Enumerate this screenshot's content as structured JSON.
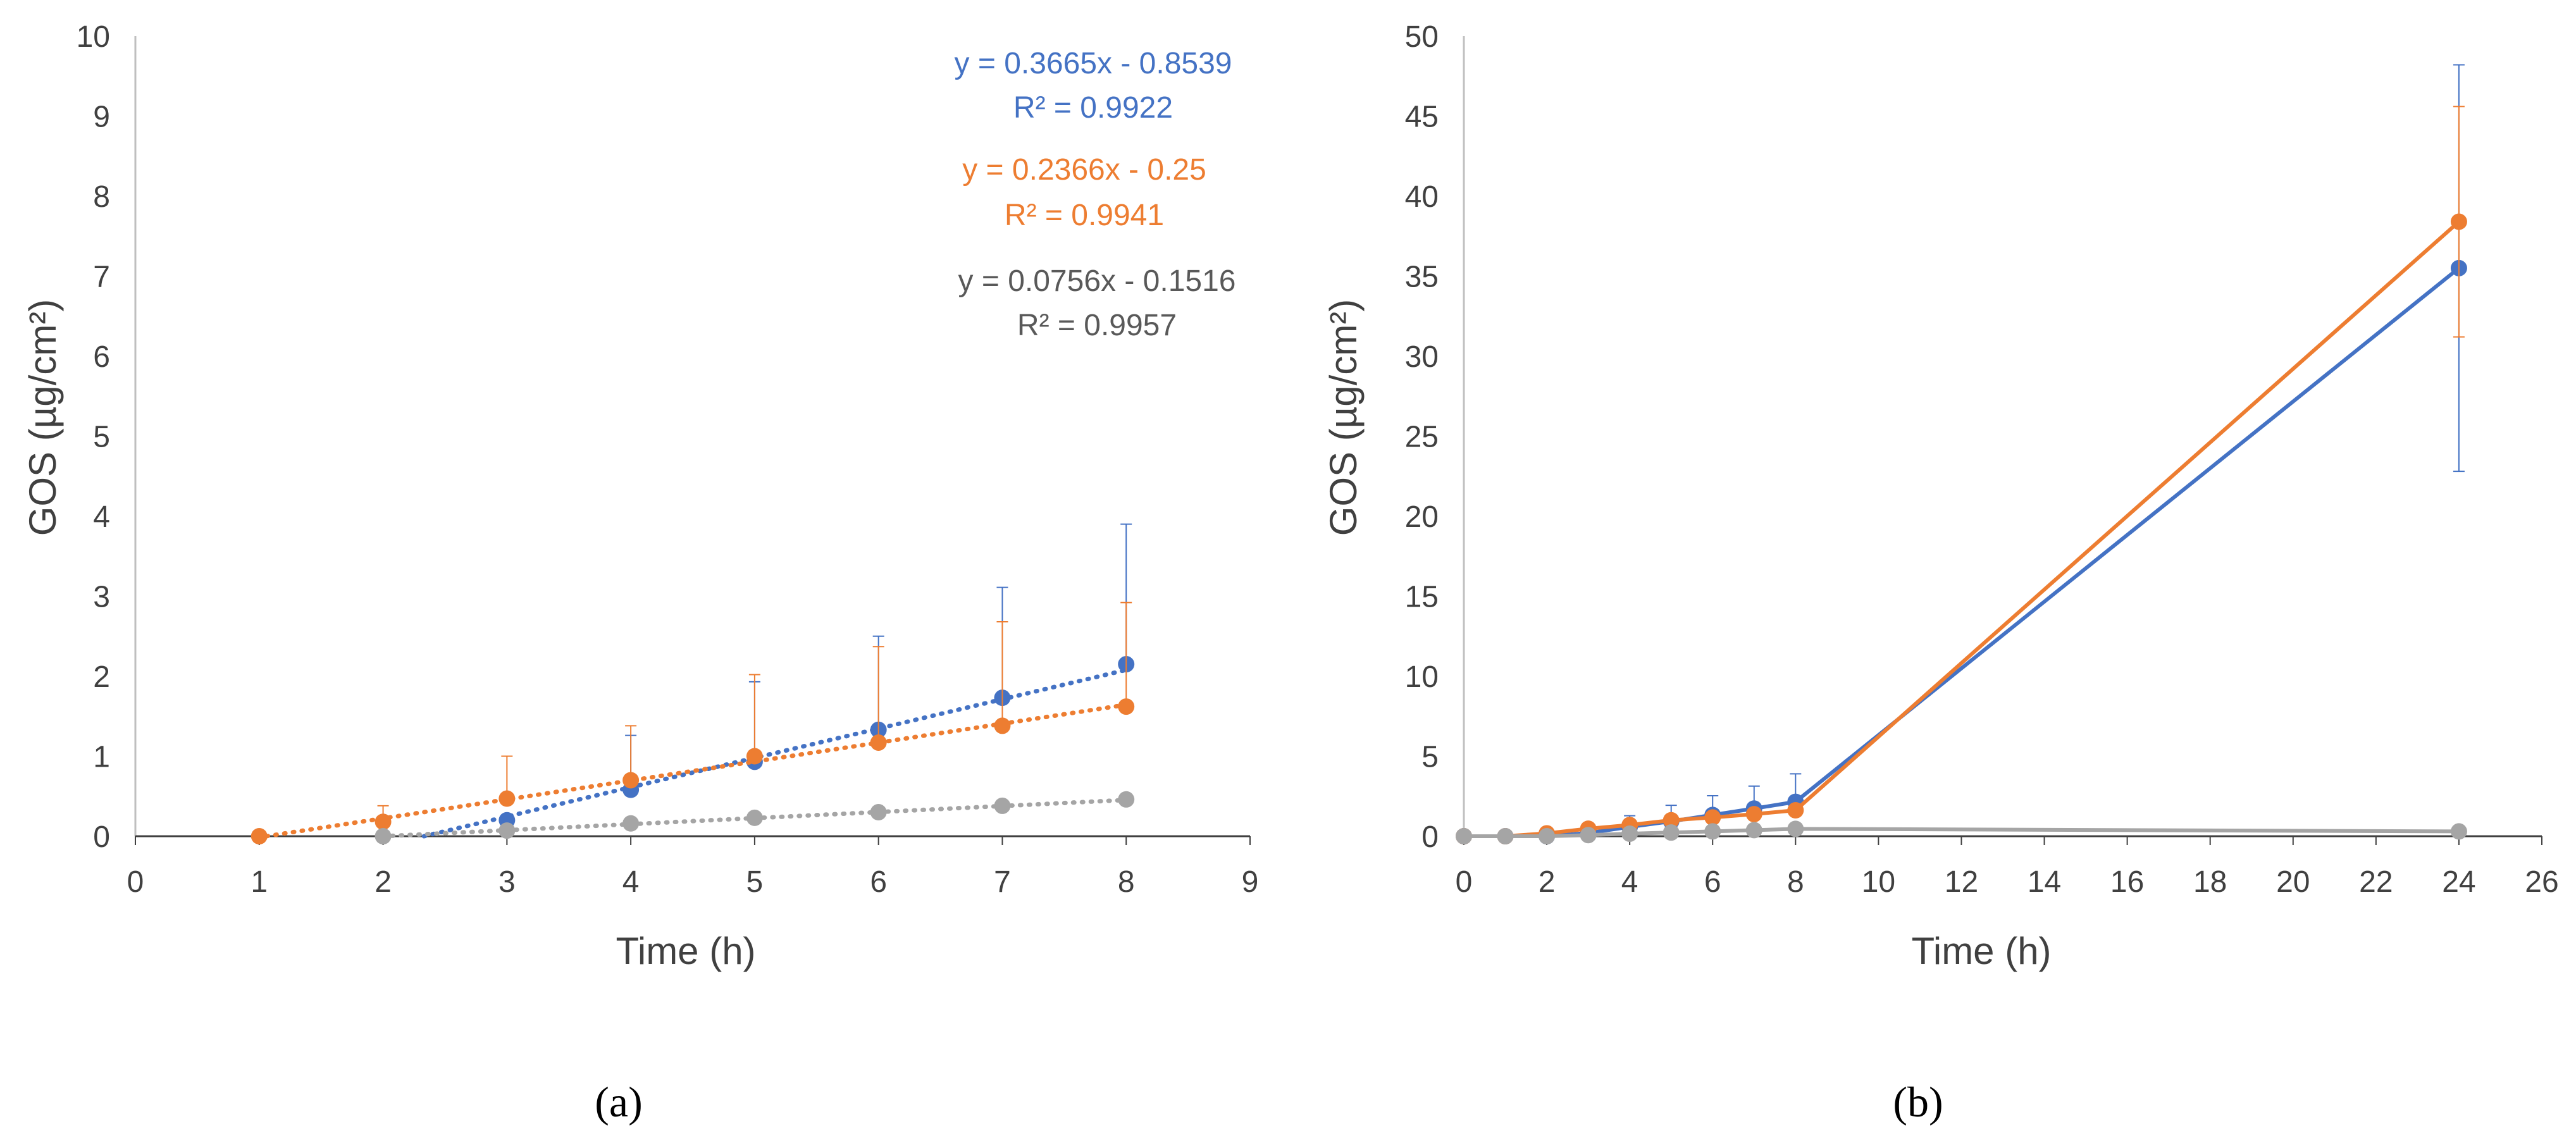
{
  "chart_data": [
    {
      "panel_label": "(a)",
      "type": "scatter",
      "title": "",
      "xlabel": "Time (h)",
      "ylabel": "GOS (µg/cm²)",
      "xlim": [
        0,
        9
      ],
      "ylim": [
        0,
        10
      ],
      "xticks": [
        "0",
        "1",
        "2",
        "3",
        "4",
        "5",
        "6",
        "7",
        "8",
        "9"
      ],
      "yticks": [
        "0",
        "1",
        "2",
        "3",
        "4",
        "5",
        "6",
        "7",
        "8",
        "9",
        "10"
      ],
      "grid": false,
      "series": [
        {
          "name": "blue",
          "color": "#4472C4",
          "x": [
            3,
            4,
            5,
            6,
            7,
            8
          ],
          "y": [
            0.2,
            0.58,
            0.93,
            1.33,
            1.73,
            2.15
          ],
          "err_hi": [
            0,
            0.68,
            1.0,
            1.17,
            1.38,
            1.75
          ],
          "err_lo": [
            0,
            0,
            0,
            0,
            0,
            0
          ],
          "trendline": {
            "equation": "y = 0.3665x - 0.8539",
            "r2": "R² = 0.9922",
            "slope": 0.3665,
            "intercept": -0.8539,
            "x_range": [
              2.33,
              8
            ]
          }
        },
        {
          "name": "orange",
          "color": "#ED7D31",
          "x": [
            1,
            2,
            3,
            4,
            5,
            6,
            7,
            8
          ],
          "y": [
            0.0,
            0.18,
            0.47,
            0.7,
            1.0,
            1.17,
            1.38,
            1.62
          ],
          "err_hi": [
            0,
            0.2,
            0.53,
            0.68,
            1.02,
            1.2,
            1.3,
            1.3
          ],
          "err_lo": [
            0,
            0,
            0,
            0,
            0,
            0,
            0,
            0
          ],
          "trendline": {
            "equation": "y = 0.2366x - 0.25",
            "r2": "R² = 0.9941",
            "slope": 0.2366,
            "intercept": -0.25,
            "x_range": [
              1.06,
              8
            ]
          }
        },
        {
          "name": "gray",
          "color": "#A5A5A5",
          "x": [
            2,
            3,
            4,
            5,
            6,
            7,
            8
          ],
          "y": [
            0.0,
            0.07,
            0.16,
            0.23,
            0.3,
            0.38,
            0.46
          ],
          "err_hi": [
            0,
            0,
            0,
            0,
            0,
            0,
            0
          ],
          "err_lo": [
            0,
            0,
            0,
            0,
            0,
            0,
            0
          ],
          "trendline": {
            "equation": "y = 0.0756x - 0.1516",
            "r2": "R² = 0.9957",
            "slope": 0.0756,
            "intercept": -0.1516,
            "x_range": [
              2.0,
              8
            ]
          }
        }
      ],
      "equation_colors": [
        "#4472C4",
        "#ED7D31",
        "#595959"
      ]
    },
    {
      "panel_label": "(b)",
      "type": "line",
      "title": "",
      "xlabel": "Time (h)",
      "ylabel": "GOS (µg/cm²)",
      "xlim": [
        0,
        26
      ],
      "ylim": [
        0,
        50
      ],
      "xticks": [
        "0",
        "2",
        "4",
        "6",
        "8",
        "10",
        "12",
        "14",
        "16",
        "18",
        "20",
        "22",
        "24",
        "26"
      ],
      "yticks": [
        "0",
        "5",
        "10",
        "15",
        "20",
        "25",
        "30",
        "35",
        "40",
        "45",
        "50"
      ],
      "grid": false,
      "series": [
        {
          "name": "blue",
          "color": "#4472C4",
          "x": [
            0,
            1,
            2,
            3,
            4,
            5,
            6,
            7,
            8,
            24
          ],
          "y": [
            0,
            0,
            0,
            0.2,
            0.58,
            0.93,
            1.33,
            1.73,
            2.15,
            35.5
          ],
          "err_hi": [
            0,
            0,
            0,
            0,
            0.7,
            1.0,
            1.2,
            1.4,
            1.75,
            12.7
          ],
          "err_lo": [
            0,
            0,
            0,
            0,
            0,
            0,
            0,
            0,
            0,
            12.7
          ]
        },
        {
          "name": "orange",
          "color": "#ED7D31",
          "x": [
            0,
            1,
            2,
            3,
            4,
            5,
            6,
            7,
            8,
            24
          ],
          "y": [
            0,
            0,
            0.18,
            0.47,
            0.7,
            1.0,
            1.17,
            1.38,
            1.62,
            38.4
          ],
          "err_hi": [
            0,
            0,
            0,
            0,
            0,
            0,
            0,
            0,
            0,
            7.2
          ],
          "err_lo": [
            0,
            0,
            0,
            0,
            0,
            0,
            0,
            0,
            0,
            7.2
          ]
        },
        {
          "name": "gray",
          "color": "#A5A5A5",
          "x": [
            0,
            1,
            2,
            3,
            4,
            5,
            6,
            7,
            8,
            24
          ],
          "y": [
            0,
            0,
            0,
            0.07,
            0.16,
            0.23,
            0.3,
            0.38,
            0.46,
            0.3
          ],
          "err_hi": [
            0,
            0,
            0,
            0,
            0,
            0,
            0,
            0,
            0,
            0
          ],
          "err_lo": [
            0,
            0,
            0,
            0,
            0,
            0,
            0,
            0,
            0,
            0
          ]
        }
      ]
    }
  ]
}
